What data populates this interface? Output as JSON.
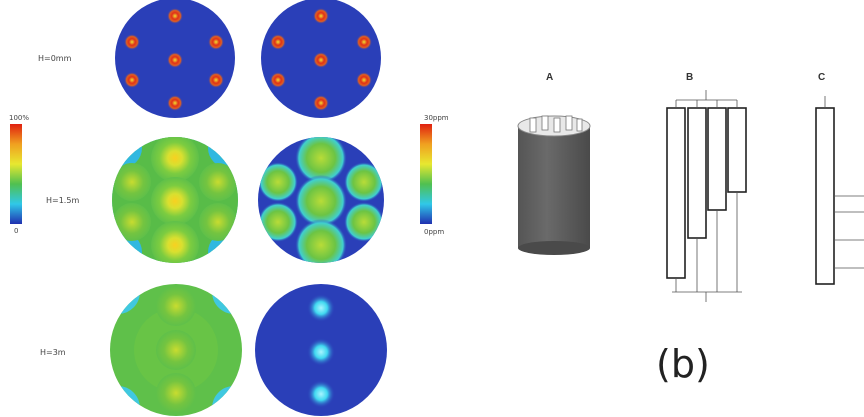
{
  "left": {
    "rows": [
      {
        "label": "H=0mm"
      },
      {
        "label": "H=1.5m"
      },
      {
        "label": "H=3m"
      }
    ],
    "scale_left": {
      "top": "100%",
      "bottom": "0"
    },
    "scale_right": {
      "top": "30ppm",
      "bottom": "0ppm"
    }
  },
  "right": {
    "panels": [
      {
        "letter": "A"
      },
      {
        "letter": "B"
      },
      {
        "letter": "C"
      }
    ],
    "caption": "(b)"
  },
  "colors": {
    "field_blue": "#2a3fb8",
    "field_green": "#5fc04a",
    "hot_red": "#e03018",
    "hot_yellow": "#f0e030",
    "cyan": "#40d8f0"
  }
}
